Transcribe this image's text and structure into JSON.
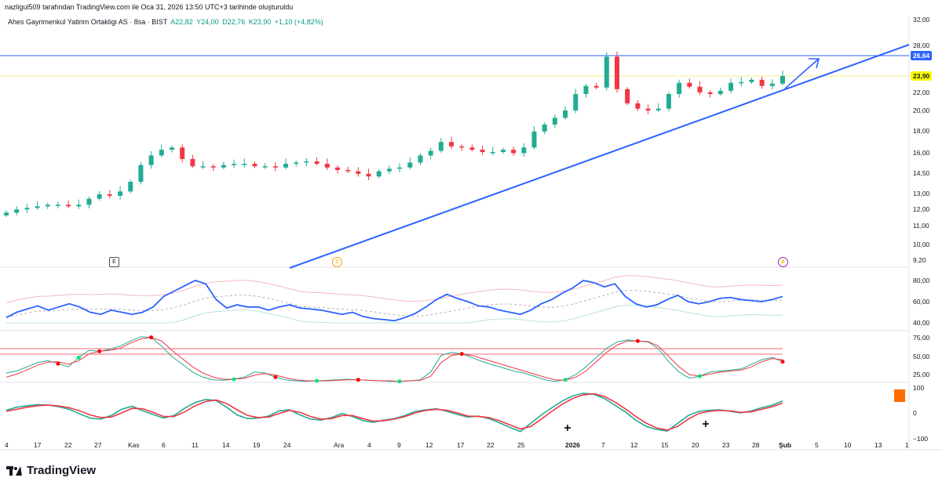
{
  "header": {
    "credit": "nazligul509 tarafından TradingView.com ile Oca 31, 2026 13:50 UTC+3 tarihinde oluşturuldu",
    "symbol": "Ahes Gayrimenkul Yatirim Ortakligi AS · 8sa · BIST",
    "open": "A22,82",
    "high": "Y24,00",
    "low": "D22,76",
    "close": "K23,90",
    "change": "+1,10 (+4,82%)"
  },
  "price_axis_labels": [
    "32,00",
    "28,00",
    "26,64",
    "24,00",
    "23,90",
    "22,00",
    "20,00",
    "18,00",
    "16,00",
    "14,50",
    "13,00",
    "12,00",
    "11,00",
    "10,00",
    "9,20"
  ],
  "tags": {
    "blue_level": "26,64",
    "last_price": "23,90"
  },
  "rsi_axis_labels": [
    "80,00",
    "60,00",
    "40,00"
  ],
  "stoch_axis_labels": [
    "75,00",
    "50,00",
    "25,00"
  ],
  "osc_axis_labels": [
    "100",
    "0",
    "−100"
  ],
  "time_axis_labels": [
    "4",
    "17",
    "22",
    "27",
    "Kas",
    "6",
    "11",
    "14",
    "19",
    "24",
    "Ara",
    "4",
    "9",
    "12",
    "17",
    "22",
    "25",
    "2026",
    "7",
    "12",
    "15",
    "20",
    "23",
    "28",
    "Şub",
    "5",
    "10",
    "13",
    "1"
  ],
  "events": {
    "earnings": "E",
    "dividend": "S",
    "split": "⚡"
  },
  "logo_text": "TradingView",
  "colors": {
    "up": "#22ab94",
    "down": "#f23645",
    "trend": "#2962ff",
    "rsi": "#2962ff",
    "stoch_k": "#22ab94",
    "stoch_d": "#f23645",
    "highlight": "#ffff00",
    "orange_box": "#ff6d00"
  },
  "chart_data": [
    {
      "type": "candlestick",
      "title": "Ahes Gayrimenkul Yatirim Ortakligi AS · 8sa · BIST",
      "scale": "log",
      "ylim": [
        9.2,
        32.0
      ],
      "x": [
        "Eki 4",
        "Eki 17",
        "Eki 22",
        "Eki 27",
        "Kas",
        "Kas 6",
        "Kas 11",
        "Kas 14",
        "Kas 19",
        "Kas 24",
        "Ara",
        "Ara 4",
        "Ara 9",
        "Ara 12",
        "Ara 17",
        "Ara 22",
        "Ara 25",
        "2026",
        "Oca 7",
        "Oca 12",
        "Oca 15",
        "Oca 20",
        "Oca 23",
        "Oca 28",
        "Şub"
      ],
      "close_path": [
        11.1,
        11.3,
        11.4,
        11.5,
        11.6,
        11.6,
        11.5,
        11.6,
        12.0,
        12.3,
        12.2,
        12.5,
        13.2,
        14.5,
        15.3,
        15.8,
        16.0,
        15.0,
        14.4,
        14.4,
        14.3,
        14.5,
        14.6,
        14.6,
        14.4,
        14.4,
        14.3,
        14.6,
        14.7,
        14.8,
        14.6,
        14.3,
        14.1,
        14.0,
        13.8,
        13.6,
        14.0,
        14.2,
        14.3,
        14.7,
        15.3,
        15.7,
        16.5,
        16.1,
        16.0,
        15.8,
        15.6,
        15.6,
        15.8,
        15.5,
        16.0,
        17.5,
        18.2,
        18.9,
        19.7,
        21.6,
        22.6,
        22.4,
        26.64,
        22.2,
        20.5,
        19.9,
        19.7,
        19.9,
        21.6,
        23.0,
        22.5,
        21.8,
        21.6,
        22.0,
        23.0,
        23.1,
        23.4,
        22.6,
        22.9,
        23.9
      ],
      "last": 23.9,
      "levels": {
        "horizontal_blue": 26.64,
        "last_price_line": 23.9
      },
      "trendline": {
        "from": [
          "Kas 24",
          9.2
        ],
        "to": [
          "Şub",
          28.0
        ]
      }
    },
    {
      "type": "line",
      "title": "RSI",
      "ylim": [
        40,
        80
      ],
      "series": [
        {
          "values": [
            45,
            50,
            53,
            56,
            52,
            55,
            58,
            55,
            50,
            48,
            52,
            50,
            48,
            50,
            55,
            65,
            70,
            75,
            80,
            77,
            62,
            54,
            57,
            55,
            55,
            52,
            55,
            57,
            54,
            53,
            52,
            50,
            48,
            50,
            46,
            44,
            43,
            42,
            45,
            49,
            55,
            62,
            67,
            63,
            60,
            56,
            55,
            52,
            50,
            48,
            52,
            58,
            62,
            68,
            73,
            80,
            78,
            74,
            77,
            65,
            58,
            55,
            57,
            62,
            66,
            60,
            58,
            60,
            63,
            64,
            62,
            61,
            60,
            62,
            65
          ]
        }
      ]
    },
    {
      "type": "line",
      "title": "Stochastic",
      "ylim": [
        0,
        100
      ],
      "series": [
        {
          "values": [
            18,
            22,
            30,
            38,
            42,
            36,
            30,
            48,
            62,
            60,
            64,
            70,
            80,
            88,
            87,
            70,
            50,
            35,
            20,
            10,
            5,
            4,
            6,
            10,
            20,
            18,
            10,
            5,
            3,
            2,
            3,
            4,
            5,
            6,
            5,
            4,
            3,
            2,
            2,
            3,
            5,
            20,
            52,
            58,
            55,
            48,
            40,
            34,
            28,
            22,
            18,
            12,
            5,
            2,
            5,
            15,
            30,
            48,
            66,
            78,
            82,
            80,
            78,
            65,
            40,
            20,
            8,
            12,
            20,
            22,
            24,
            26,
            35,
            44,
            48,
            40
          ]
        },
        {
          "values": [
            10,
            16,
            24,
            33,
            39,
            40,
            35,
            42,
            55,
            60,
            62,
            66,
            76,
            84,
            87,
            80,
            62,
            46,
            30,
            18,
            10,
            6,
            6,
            8,
            14,
            17,
            14,
            9,
            5,
            3,
            3,
            3,
            4,
            5,
            5,
            4,
            3,
            3,
            2,
            3,
            4,
            12,
            38,
            52,
            55,
            52,
            46,
            40,
            34,
            28,
            22,
            16,
            10,
            5,
            4,
            10,
            22,
            40,
            58,
            72,
            80,
            80,
            79,
            70,
            50,
            30,
            15,
            12,
            16,
            20,
            22,
            24,
            30,
            40,
            46,
            44
          ]
        }
      ]
    },
    {
      "type": "line",
      "title": "Oscillator",
      "ylim": [
        -100,
        100
      ],
      "series": [
        {
          "values": [
            10,
            22,
            28,
            32,
            30,
            24,
            14,
            -4,
            -20,
            -24,
            -10,
            14,
            26,
            8,
            -6,
            -20,
            -10,
            18,
            40,
            52,
            48,
            22,
            -8,
            -22,
            -20,
            -12,
            8,
            12,
            -8,
            -24,
            -28,
            -18,
            -2,
            -14,
            -30,
            -36,
            -28,
            -22,
            -10,
            6,
            12,
            16,
            6,
            -6,
            -16,
            -12,
            -22,
            -38,
            -56,
            -72,
            -40,
            -8,
            20,
            46,
            66,
            76,
            72,
            56,
            30,
            4,
            -28,
            -52,
            -64,
            -70,
            -40,
            -10,
            6,
            10,
            12,
            6,
            0,
            8,
            20,
            30,
            46
          ]
        },
        {
          "values": [
            6,
            14,
            22,
            28,
            30,
            27,
            20,
            8,
            -8,
            -18,
            -16,
            0,
            18,
            16,
            2,
            -14,
            -14,
            4,
            28,
            44,
            50,
            36,
            12,
            -10,
            -18,
            -16,
            -2,
            10,
            2,
            -14,
            -24,
            -22,
            -10,
            -10,
            -22,
            -32,
            -30,
            -24,
            -14,
            0,
            10,
            14,
            10,
            0,
            -12,
            -14,
            -18,
            -30,
            -46,
            -62,
            -52,
            -24,
            6,
            34,
            56,
            70,
            74,
            64,
            42,
            16,
            -14,
            -40,
            -58,
            -66,
            -52,
            -24,
            -2,
            6,
            10,
            8,
            2,
            4,
            14,
            24,
            38
          ]
        }
      ]
    }
  ]
}
